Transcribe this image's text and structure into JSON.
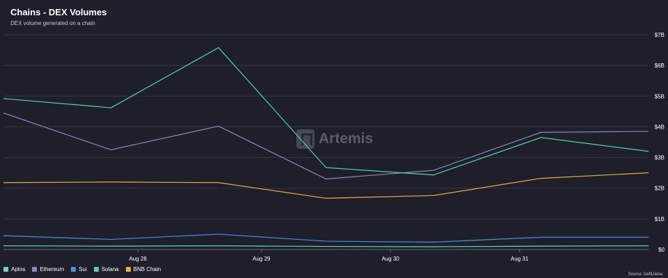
{
  "header": {
    "title": "Chains - DEX Volumes",
    "subtitle": "DEX volume generated on a chain"
  },
  "watermark": {
    "text": "Artemis"
  },
  "source": "Source: DefiLlama",
  "chart_data": {
    "type": "line",
    "title": "Chains - DEX Volumes",
    "subtitle": "DEX volume generated on a chain",
    "xlabel": "",
    "ylabel": "",
    "x_tick_labels": [
      "Aug 28",
      "Aug 29",
      "Aug 30",
      "Aug 31"
    ],
    "x_tick_positions": [
      1.25,
      2.4,
      3.6,
      4.8
    ],
    "y_ticks": [
      0,
      1,
      2,
      3,
      4,
      5,
      6,
      7
    ],
    "y_tick_labels": [
      "$0",
      "$1B",
      "$2B",
      "$3B",
      "$4B",
      "$5B",
      "$6B",
      "$7B"
    ],
    "ylim": [
      0,
      7
    ],
    "xlim": [
      0,
      6
    ],
    "y_axis_side": "right",
    "grid": true,
    "legend_position": "bottom-left",
    "x": [
      0,
      1,
      2,
      3,
      4,
      5,
      6
    ],
    "series": [
      {
        "name": "Aptos",
        "color": "#5ee0b4",
        "values": [
          0.12,
          0.11,
          0.12,
          0.1,
          0.09,
          0.11,
          0.12
        ]
      },
      {
        "name": "Ethereum",
        "color": "#8f86c6",
        "values": [
          4.45,
          3.25,
          4.02,
          2.3,
          2.58,
          3.82,
          3.85
        ]
      },
      {
        "name": "Sui",
        "color": "#4a8fe0",
        "values": [
          0.45,
          0.33,
          0.5,
          0.27,
          0.24,
          0.4,
          0.4
        ]
      },
      {
        "name": "Solana",
        "color": "#4fd6a6",
        "values": [
          4.92,
          4.62,
          6.58,
          2.67,
          2.43,
          3.65,
          3.2
        ]
      },
      {
        "name": "BNB Chain",
        "color": "#e0b43c",
        "values": [
          2.18,
          2.2,
          2.18,
          1.67,
          1.76,
          2.32,
          2.5
        ]
      }
    ]
  }
}
